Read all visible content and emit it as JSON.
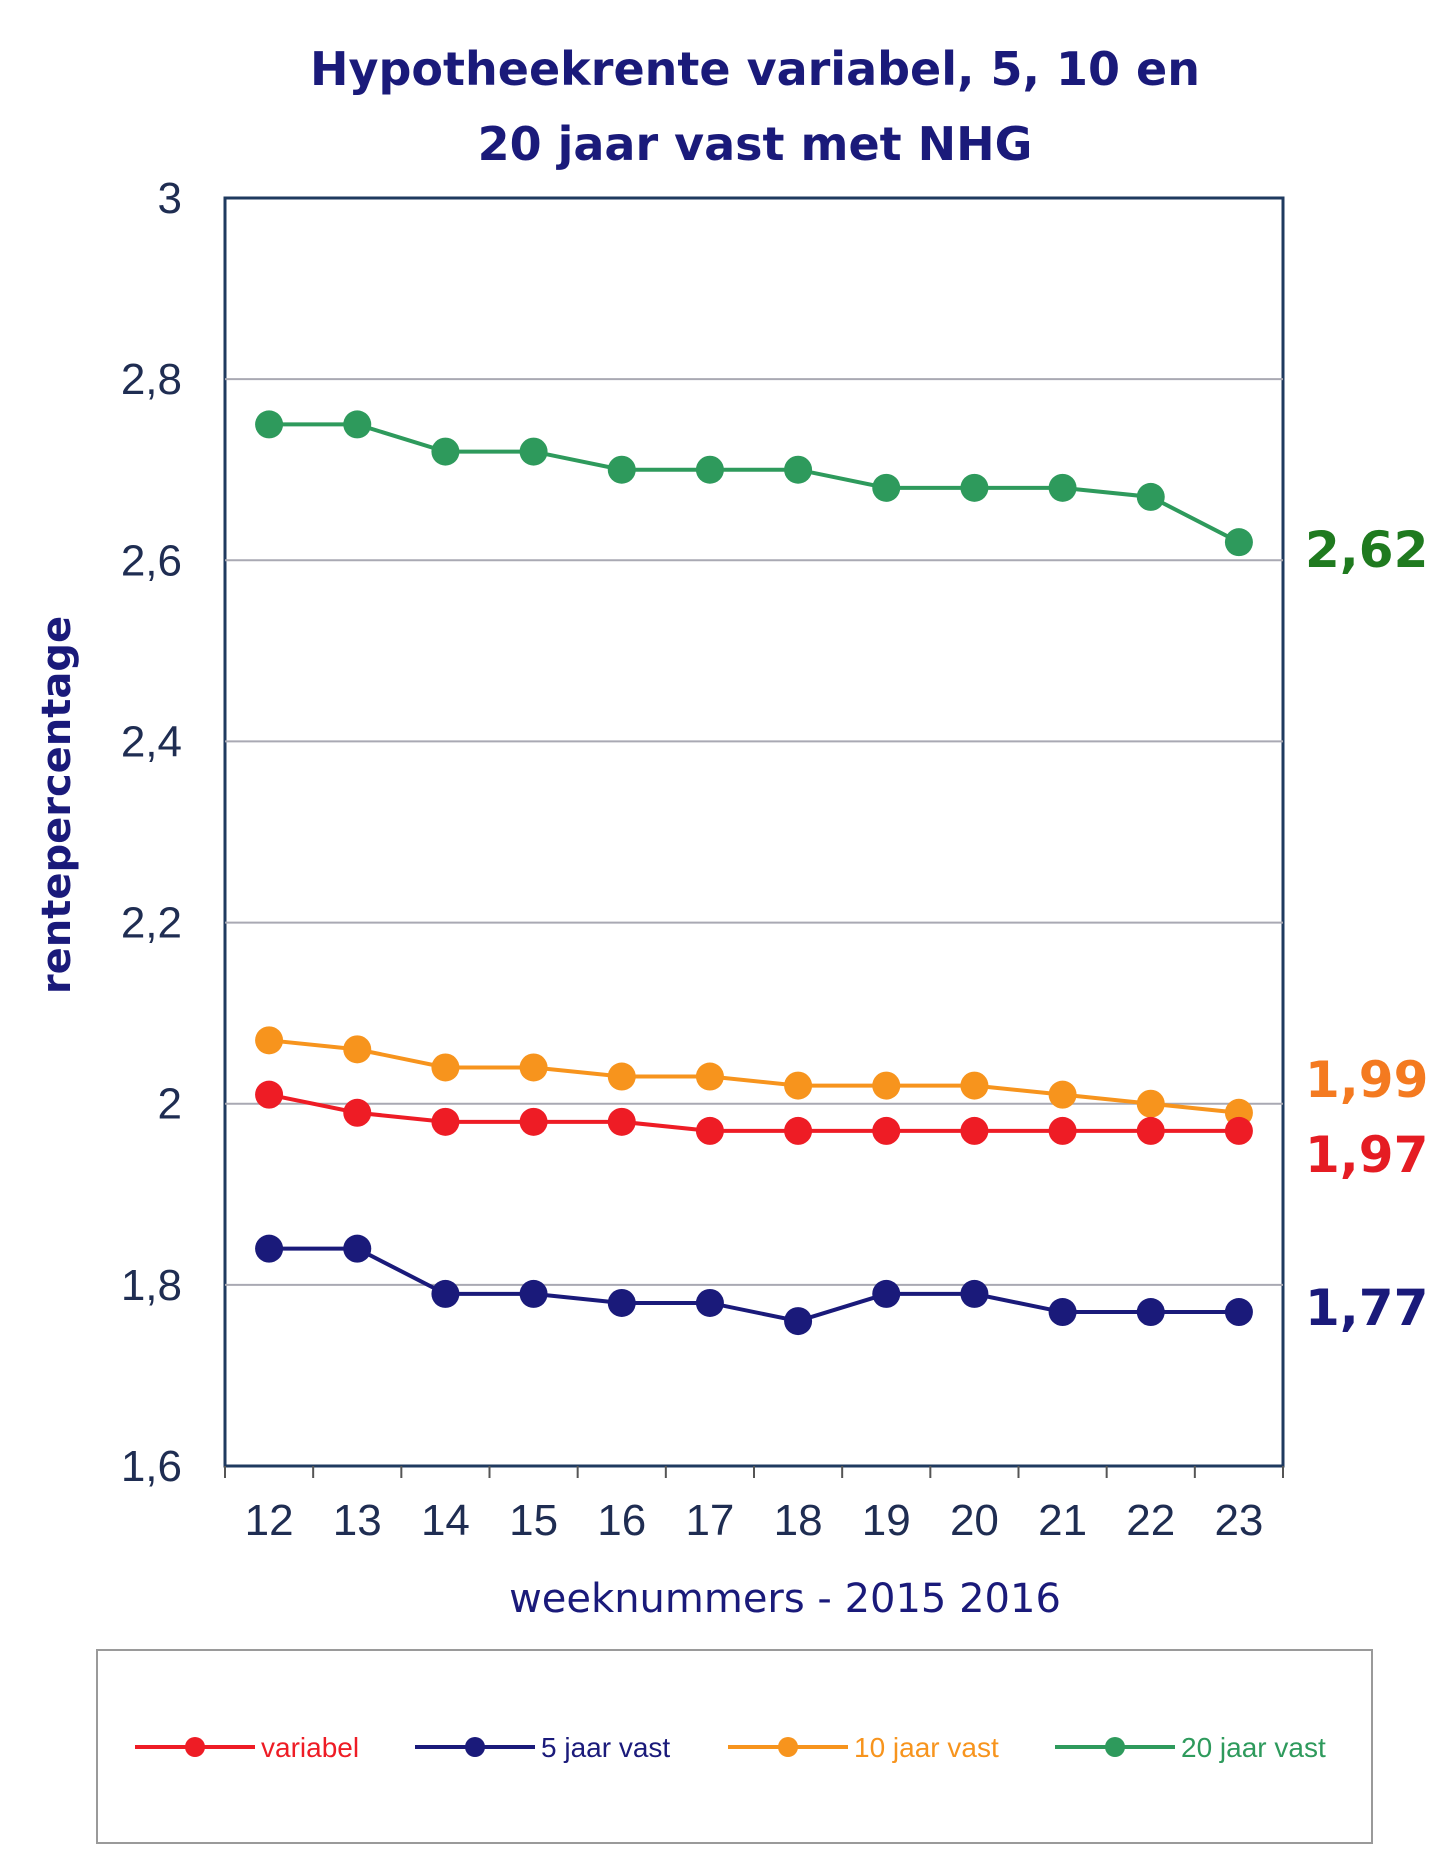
{
  "chart_data": {
    "type": "line",
    "title_lines": [
      "Hypotheekrente variabel, 5, 10 en",
      "20 jaar vast met NHG"
    ],
    "xlabel": "weeknummers - 2015 2016",
    "ylabel": "rentepercentage",
    "categories": [
      "12",
      "13",
      "14",
      "15",
      "16",
      "17",
      "18",
      "19",
      "20",
      "21",
      "22",
      "23"
    ],
    "ylim": [
      1.6,
      3.0
    ],
    "yticks": [
      "1,6",
      "1,8",
      "2",
      "2,2",
      "2,4",
      "2,6",
      "2,8",
      "3"
    ],
    "ytick_values": [
      1.6,
      1.8,
      2.0,
      2.2,
      2.4,
      2.6,
      2.8,
      3.0
    ],
    "grid": true,
    "legend_position": "bottom",
    "series": [
      {
        "name": "variabel",
        "color": "#ee1c25",
        "values": [
          2.01,
          1.99,
          1.98,
          1.98,
          1.98,
          1.97,
          1.97,
          1.97,
          1.97,
          1.97,
          1.97,
          1.97
        ],
        "end_label": "1,97",
        "end_label_color": "#e51c23"
      },
      {
        "name": "5 jaar vast",
        "color": "#1a1a7a",
        "values": [
          1.84,
          1.84,
          1.79,
          1.79,
          1.78,
          1.78,
          1.76,
          1.79,
          1.79,
          1.77,
          1.77,
          1.77
        ],
        "end_label": "1,77",
        "end_label_color": "#1a1a7a"
      },
      {
        "name": "10 jaar vast",
        "color": "#f7941d",
        "values": [
          2.07,
          2.06,
          2.04,
          2.04,
          2.03,
          2.03,
          2.02,
          2.02,
          2.02,
          2.01,
          2.0,
          1.99
        ],
        "end_label": "1,99",
        "end_label_color": "#f47a20"
      },
      {
        "name": "20 jaar vast",
        "color": "#2e9a5c",
        "values": [
          2.75,
          2.75,
          2.72,
          2.72,
          2.7,
          2.7,
          2.7,
          2.68,
          2.68,
          2.68,
          2.67,
          2.62
        ],
        "end_label": "2,62",
        "end_label_color": "#1f7a1f"
      }
    ]
  }
}
